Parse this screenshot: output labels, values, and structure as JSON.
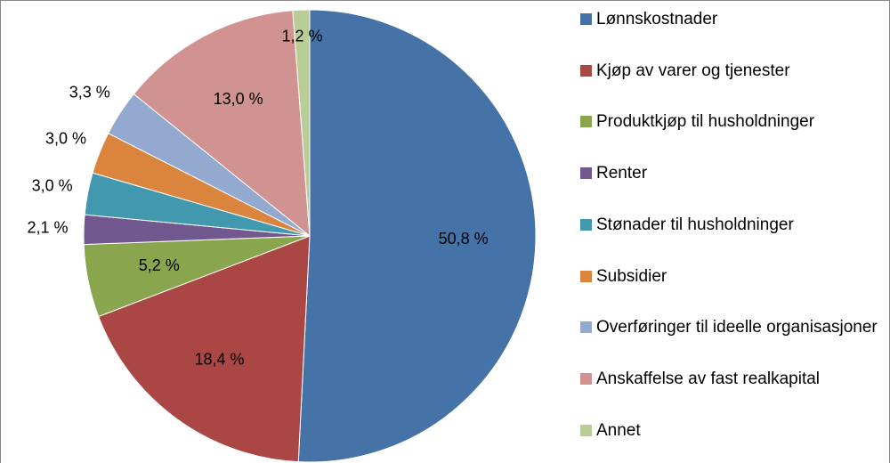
{
  "chart_data": {
    "type": "pie",
    "categories": [
      "Lønnskostnader",
      "Kjøp av varer og tjenester",
      "Produktkjøp til husholdninger",
      "Renter",
      "Stønader til husholdninger",
      "Subsidier",
      "Overføringer til ideelle organisasjoner",
      "Anskaffelse av fast realkapital",
      "Annet"
    ],
    "values": [
      50.8,
      18.4,
      5.2,
      2.1,
      3.0,
      3.0,
      3.3,
      13.0,
      1.2
    ],
    "value_labels": [
      "50,8 %",
      "18,4 %",
      "5,2 %",
      "2,1 %",
      "3,0 %",
      "3,0 %",
      "3,3 %",
      "13,0 %",
      "1,2 %"
    ],
    "colors": [
      "#4572a7",
      "#aa4643",
      "#89a54e",
      "#71588f",
      "#4198af",
      "#db843d",
      "#93a9cf",
      "#d19392",
      "#b9cd96"
    ],
    "legend": "right"
  }
}
